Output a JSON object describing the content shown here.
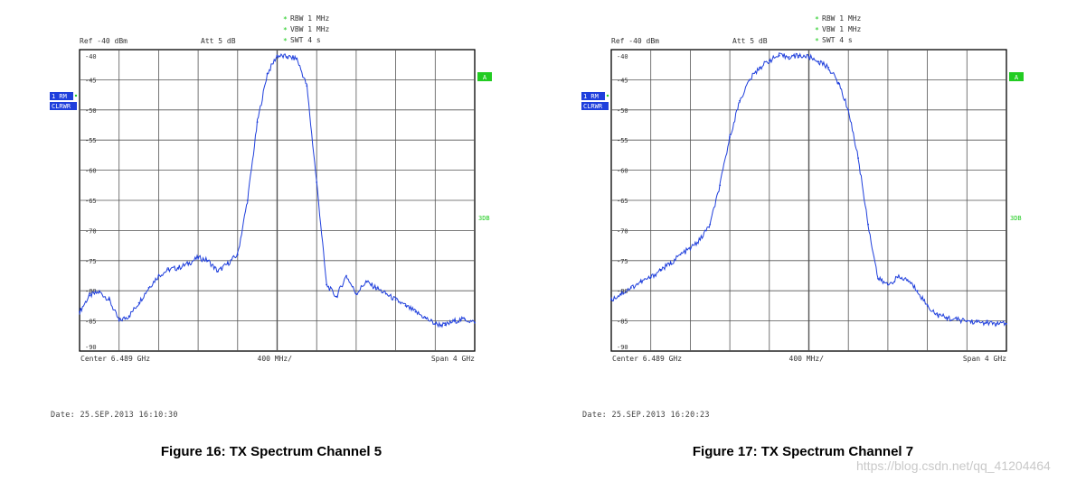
{
  "chart_data": [
    {
      "type": "line",
      "title": "Figure 16: TX Spectrum Channel 5",
      "settings": {
        "rbw": "RBW  1 MHz",
        "vbw": "VBW  1 MHz",
        "swt": "SWT  4 s"
      },
      "ref_label": "Ref  -40 dBm",
      "att_label": "Att   5 dB",
      "trace_badge_1": "1 RM",
      "trace_badge_2": "CLRWR",
      "marker_a": "A",
      "marker_3db": "3DB",
      "y_ticks": [
        "-40",
        "-45",
        "-50",
        "-55",
        "-60",
        "-65",
        "-70",
        "-75",
        "-80",
        "-85",
        "-90"
      ],
      "x_left_label": "Center  6.489 GHz",
      "x_mid_label": "400 MHz/",
      "x_right_label": "Span  4 GHz",
      "date_label": "Date: 25.SEP.2013  16:10:30",
      "ylim": [
        -90,
        -40
      ],
      "x_range_ghz": [
        4.489,
        8.489
      ],
      "x": [
        4.489,
        4.589,
        4.689,
        4.789,
        4.889,
        4.989,
        5.089,
        5.189,
        5.289,
        5.389,
        5.489,
        5.589,
        5.689,
        5.789,
        5.889,
        5.989,
        6.089,
        6.189,
        6.289,
        6.389,
        6.489,
        6.589,
        6.689,
        6.789,
        6.889,
        6.989,
        7.089,
        7.189,
        7.289,
        7.389,
        7.489,
        7.589,
        7.689,
        7.789,
        7.889,
        7.989,
        8.089,
        8.189,
        8.289,
        8.389,
        8.489
      ],
      "y": [
        -83.5,
        -80.8,
        -80.2,
        -81.5,
        -85.0,
        -84.2,
        -82.0,
        -79.5,
        -77.5,
        -76.5,
        -76.2,
        -75.5,
        -74.5,
        -75.0,
        -76.8,
        -75.5,
        -74.0,
        -65.0,
        -52.0,
        -44.0,
        -41.0,
        -41.2,
        -41.5,
        -46.0,
        -62.0,
        -79.0,
        -81.0,
        -77.5,
        -80.5,
        -78.5,
        -79.5,
        -80.5,
        -81.5,
        -82.5,
        -83.5,
        -84.5,
        -85.5,
        -85.7,
        -85.0,
        -84.7,
        -85.3
      ],
      "series": [
        {
          "name": "1 RM",
          "color": "#1f3fdc"
        }
      ]
    },
    {
      "type": "line",
      "title": "Figure 17: TX Spectrum Channel 7",
      "settings": {
        "rbw": "RBW  1 MHz",
        "vbw": "VBW  1 MHz",
        "swt": "SWT  4 s"
      },
      "ref_label": "Ref  -40 dBm",
      "att_label": "Att   5 dB",
      "trace_badge_1": "1 RM",
      "trace_badge_2": "CLRWR",
      "marker_a": "A",
      "marker_3db": "3DB",
      "y_ticks": [
        "-40",
        "-45",
        "-50",
        "-55",
        "-60",
        "-65",
        "-70",
        "-75",
        "-80",
        "-85",
        "-90"
      ],
      "x_left_label": "Center  6.489 GHz",
      "x_mid_label": "400 MHz/",
      "x_right_label": "Span  4 GHz",
      "date_label": "Date: 25.SEP.2013  16:20:23",
      "ylim": [
        -90,
        -40
      ],
      "x_range_ghz": [
        4.489,
        8.489
      ],
      "x": [
        4.489,
        4.589,
        4.689,
        4.789,
        4.889,
        4.989,
        5.089,
        5.189,
        5.289,
        5.389,
        5.489,
        5.589,
        5.689,
        5.789,
        5.889,
        5.989,
        6.089,
        6.189,
        6.289,
        6.389,
        6.489,
        6.589,
        6.689,
        6.789,
        6.889,
        6.989,
        7.089,
        7.189,
        7.289,
        7.389,
        7.489,
        7.589,
        7.689,
        7.789,
        7.889,
        7.989,
        8.089,
        8.189,
        8.289,
        8.389,
        8.489
      ],
      "y": [
        -81.5,
        -80.5,
        -79.5,
        -78.5,
        -77.8,
        -76.5,
        -75.5,
        -74.0,
        -73.0,
        -71.5,
        -69.0,
        -62.5,
        -54.5,
        -48.5,
        -45.0,
        -43.0,
        -41.8,
        -41.0,
        -41.2,
        -41.0,
        -41.2,
        -42.0,
        -43.0,
        -45.5,
        -50.0,
        -58.0,
        -69.0,
        -78.0,
        -79.0,
        -77.8,
        -78.2,
        -80.0,
        -82.5,
        -84.0,
        -84.5,
        -84.8,
        -85.0,
        -85.2,
        -85.3,
        -85.5,
        -85.5
      ],
      "series": [
        {
          "name": "1 RM",
          "color": "#1f3fdc"
        }
      ]
    }
  ],
  "watermark": "https://blog.csdn.net/qq_41204464",
  "style": {
    "grid_color": "#000000",
    "trace_color": "#1f3fdc",
    "badge_blue": "#1f3fdc",
    "marker_green": "#22cc22",
    "settings_green": "#22cc22"
  }
}
